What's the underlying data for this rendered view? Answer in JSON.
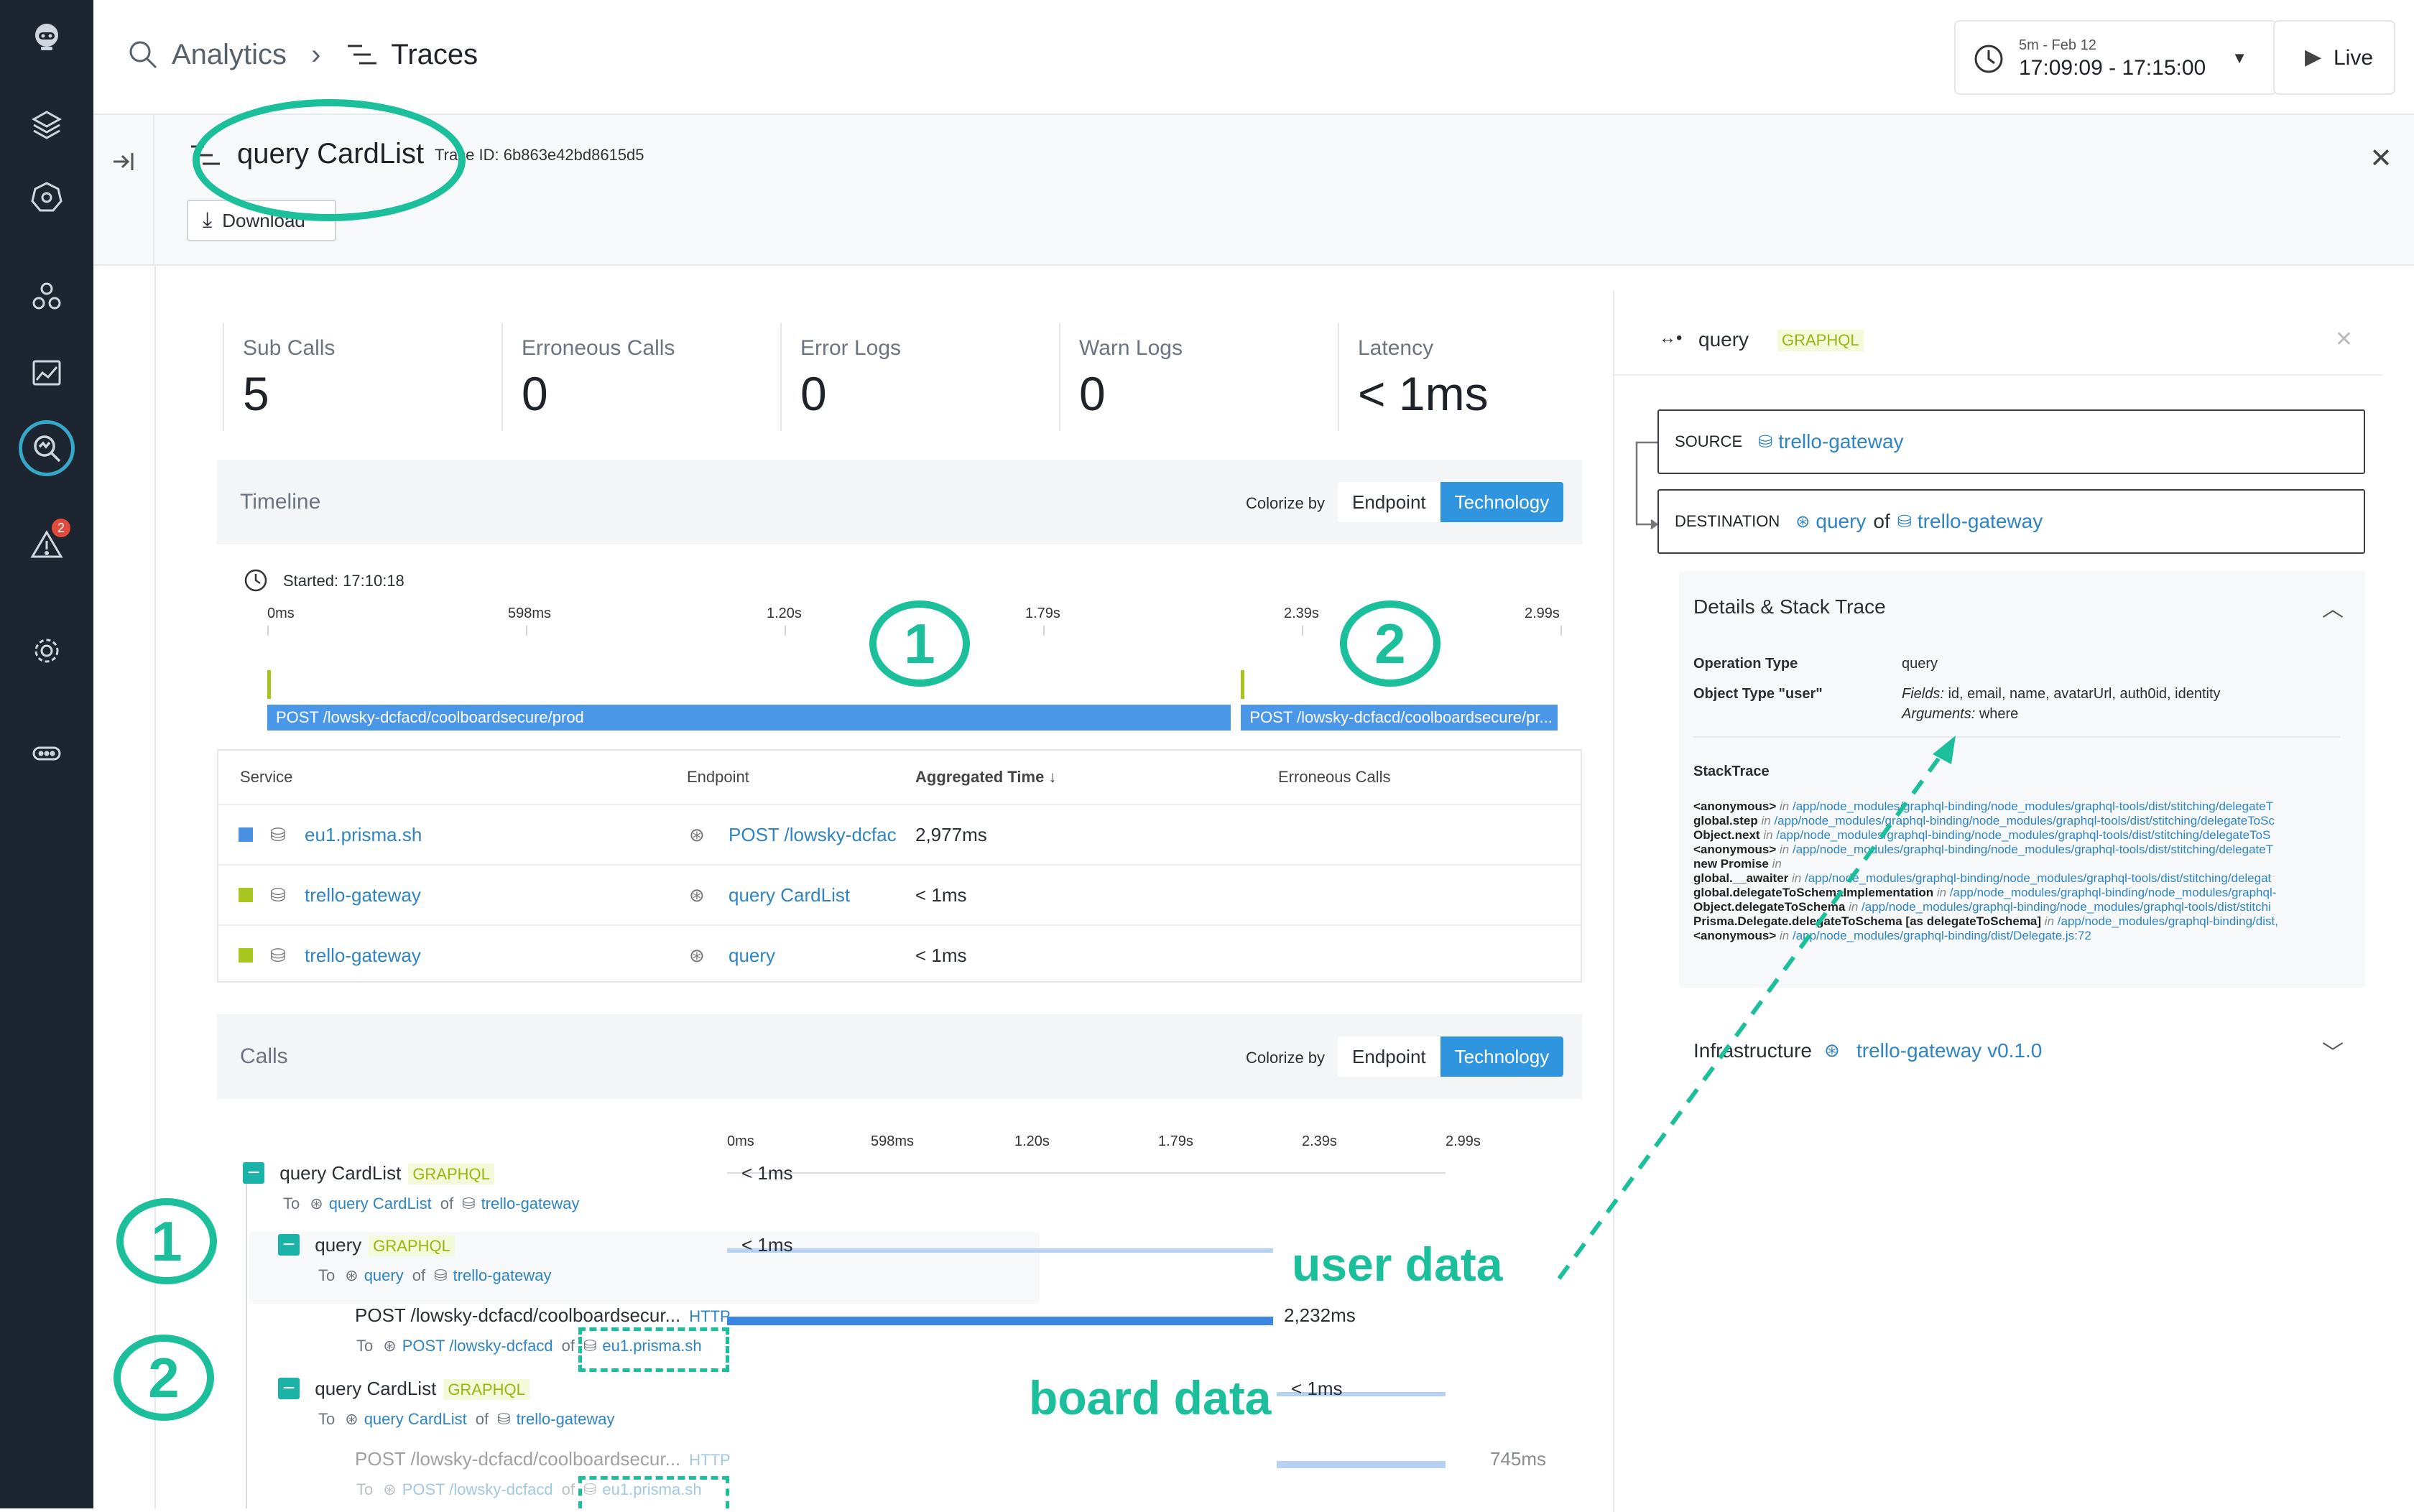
{
  "breadcrumb": {
    "analytics": "Analytics",
    "traces": "Traces"
  },
  "time_range": {
    "small": "5m - Feb 12",
    "range": "17:09:09 - 17:15:00",
    "live": "Live"
  },
  "trace": {
    "name": "query CardList",
    "trace_id": "Trace ID: 6b863e42bd8615d5",
    "download": "Download"
  },
  "metrics": [
    {
      "label": "Sub Calls",
      "value": "5"
    },
    {
      "label": "Erroneous Calls",
      "value": "0"
    },
    {
      "label": "Error Logs",
      "value": "0"
    },
    {
      "label": "Warn Logs",
      "value": "0"
    },
    {
      "label": "Latency",
      "value": "< 1ms"
    }
  ],
  "timeline": {
    "title": "Timeline",
    "colorize": "Colorize by",
    "endpoint": "Endpoint",
    "technology": "Technology",
    "started": "Started: 17:10:18",
    "ticks": [
      "0ms",
      "598ms",
      "1.20s",
      "1.79s",
      "2.39s",
      "2.99s"
    ],
    "bar1": "POST /lowsky-dcfacd/coolboardsecure/prod",
    "bar2": "POST /lowsky-dcfacd/coolboardsecure/pr...",
    "bar1_start": 0.0,
    "bar1_end": 0.745,
    "bar2_start": 0.753,
    "bar2_end": 0.998
  },
  "table": {
    "headers": [
      "Service",
      "Endpoint",
      "Aggregated Time",
      "Erroneous Calls"
    ],
    "rows": [
      {
        "color": "#4a90e2",
        "service": "eu1.prisma.sh",
        "endpoint": "POST /lowsky-dcfac",
        "time": "2,977ms"
      },
      {
        "color": "#a8c61d",
        "service": "trello-gateway",
        "endpoint": "query CardList",
        "time": "< 1ms"
      },
      {
        "color": "#a8c61d",
        "service": "trello-gateway",
        "endpoint": "query",
        "time": "< 1ms"
      }
    ]
  },
  "calls": {
    "title": "Calls",
    "colorize": "Colorize by",
    "endpoint": "Endpoint",
    "technology": "Technology",
    "ticks": [
      "0ms",
      "598ms",
      "1.20s",
      "1.79s",
      "2.39s",
      "2.99s"
    ],
    "items": [
      {
        "name": "query CardList",
        "tag": "GRAPHQL",
        "to": "To",
        "target": "query CardList",
        "of": "of",
        "service": "trello-gateway",
        "time": "< 1ms"
      },
      {
        "name": "query",
        "tag": "GRAPHQL",
        "to": "To",
        "target": "query",
        "of": "of",
        "service": "trello-gateway",
        "time": "< 1ms"
      },
      {
        "name": "POST /lowsky-dcfacd/coolboardsecur...",
        "tag": "HTTP",
        "to": "To",
        "target": "POST /lowsky-dcfacd",
        "of": "of",
        "service": "eu1.prisma.sh",
        "time": "2,232ms"
      },
      {
        "name": "query CardList",
        "tag": "GRAPHQL",
        "to": "To",
        "target": "query CardList",
        "of": "of",
        "service": "trello-gateway",
        "time": "< 1ms"
      },
      {
        "name": "POST /lowsky-dcfacd/coolboardsecur...",
        "tag": "HTTP",
        "to": "To",
        "target": "POST /lowsky-dcfacd",
        "of": "of",
        "service": "eu1.prisma.sh",
        "time": "745ms"
      }
    ]
  },
  "detail": {
    "title": "query",
    "tag": "GRAPHQL",
    "source_label": "SOURCE",
    "source": "trello-gateway",
    "dest_label": "DESTINATION",
    "dest_query": "query",
    "dest_of": "of",
    "dest_service": "trello-gateway",
    "details_title": "Details & Stack Trace",
    "op_type_label": "Operation Type",
    "op_type": "query",
    "obj_type_label": "Object Type \"user\"",
    "fields_label": "Fields:",
    "fields": "id, email, name, avatarUrl, auth0id, identity",
    "args_label": "Arguments:",
    "args": "where",
    "stack_title": "StackTrace",
    "stack": [
      {
        "fn": "<anonymous>",
        "path": "/app/node_modules/graphql-binding/node_modules/graphql-tools/dist/stitching/delegateT"
      },
      {
        "fn": "global.step",
        "path": "/app/node_modules/graphql-binding/node_modules/graphql-tools/dist/stitching/delegateToSc"
      },
      {
        "fn": "Object.next",
        "path": "/app/node_modules/graphql-binding/node_modules/graphql-tools/dist/stitching/delegateToS"
      },
      {
        "fn": "<anonymous>",
        "path": "/app/node_modules/graphql-binding/node_modules/graphql-tools/dist/stitching/delegateT"
      },
      {
        "fn": "new Promise",
        "path": ""
      },
      {
        "fn": "global.__awaiter",
        "path": "/app/node_modules/graphql-binding/node_modules/graphql-tools/dist/stitching/delegat"
      },
      {
        "fn": "global.delegateToSchemaImplementation",
        "path": "/app/node_modules/graphql-binding/node_modules/graphql-"
      },
      {
        "fn": "Object.delegateToSchema",
        "path": "/app/node_modules/graphql-binding/node_modules/graphql-tools/dist/stitchi"
      },
      {
        "fn": "Prisma.Delegate.delegateToSchema [as delegateToSchema]",
        "path": "/app/node_modules/graphql-binding/dist,"
      },
      {
        "fn": "<anonymous>",
        "path": "/app/node_modules/graphql-binding/dist/Delegate.js:72"
      }
    ],
    "in": "in",
    "infra_label": "Infrastructure",
    "infra": "trello-gateway v0.1.0"
  },
  "annotations": {
    "one": "1",
    "two": "2",
    "user_data": "user data",
    "board_data": "board data"
  },
  "rail_badge": "2"
}
